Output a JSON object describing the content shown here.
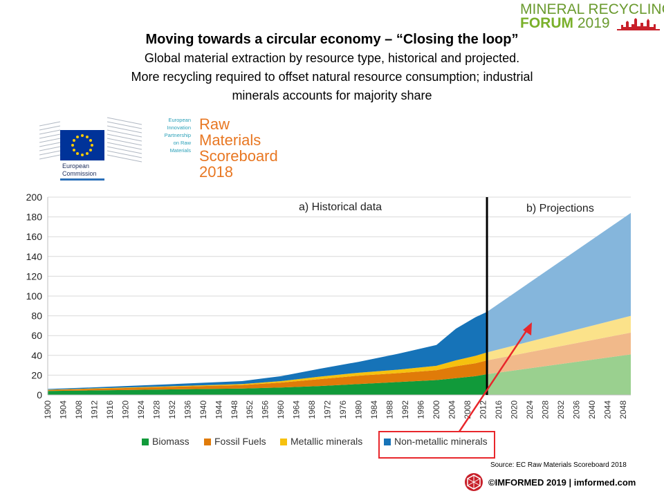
{
  "header": {
    "title": "Moving towards a circular economy – “Closing the loop”",
    "subtitle_lines": [
      "Global material extraction by resource type, historical and projected.",
      "More recycling required to offset natural resource consumption;  industrial",
      "minerals accounts for majority share"
    ]
  },
  "logos": {
    "mrf_line1": "MINERAL RECYCLING",
    "mrf_forum": "FORUM",
    "mrf_year": "2019",
    "ec_line1": "European",
    "ec_line2": "Commission",
    "eip_text": [
      "European",
      "Innovation",
      "Partnership",
      "on Raw",
      "Materials"
    ],
    "rms_text": [
      "Raw",
      "Materials",
      "Scoreboard",
      "2018"
    ]
  },
  "colors": {
    "biomass": "#119a3a",
    "fossil": "#e07b09",
    "metallic": "#f6c10f",
    "nonmetallic": "#1673b8",
    "highlight": "#e8262b"
  },
  "chart_data": {
    "type": "area",
    "stacked": true,
    "ylim": [
      0,
      200
    ],
    "yticks": [
      0,
      20,
      40,
      60,
      80,
      100,
      120,
      140,
      160,
      180,
      200
    ],
    "xlim": [
      1900,
      2050
    ],
    "xtick_labels": [
      "1900",
      "1904",
      "1908",
      "1912",
      "1916",
      "1920",
      "1924",
      "1928",
      "1932",
      "1936",
      "1940",
      "1944",
      "1948",
      "1952",
      "1956",
      "1960",
      "1964",
      "1968",
      "1972",
      "1976",
      "1980",
      "1984",
      "1988",
      "1992",
      "1996",
      "2000",
      "2004",
      "2008",
      "2012",
      "2016",
      "2020",
      "2024",
      "2028",
      "2032",
      "2036",
      "2040",
      "2044",
      "2048"
    ],
    "divider_year": 2013,
    "annotations": [
      "a) Historical data",
      "b) Projections"
    ],
    "series": [
      {
        "name": "Biomass",
        "historical": {
          "x": [
            1900,
            1910,
            1920,
            1930,
            1940,
            1950,
            1960,
            1970,
            1980,
            1990,
            2000,
            2005,
            2010,
            2013
          ],
          "y": [
            4,
            4.5,
            5,
            5.5,
            6,
            6.5,
            7.5,
            9,
            11,
            13,
            15,
            17,
            19,
            21
          ]
        },
        "projected": {
          "x": [
            2013,
            2050
          ],
          "y": [
            21,
            41
          ]
        }
      },
      {
        "name": "Fossil Fuels",
        "historical": {
          "x": [
            1900,
            1910,
            1920,
            1930,
            1940,
            1950,
            1960,
            1970,
            1980,
            1990,
            2000,
            2005,
            2010,
            2013
          ],
          "y": [
            1,
            1.5,
            2,
            2.5,
            3,
            3.5,
            5,
            7,
            8.5,
            9,
            10,
            12,
            13,
            14
          ]
        },
        "projected": {
          "x": [
            2013,
            2050
          ],
          "y": [
            14,
            22
          ]
        }
      },
      {
        "name": "Metallic minerals",
        "historical": {
          "x": [
            1900,
            1910,
            1920,
            1930,
            1940,
            1950,
            1960,
            1970,
            1980,
            1990,
            2000,
            2005,
            2010,
            2013
          ],
          "y": [
            0.3,
            0.4,
            0.5,
            0.6,
            0.8,
            1,
            1.5,
            2.5,
            3,
            3.5,
            4.5,
            6,
            7.5,
            8
          ]
        },
        "projected": {
          "x": [
            2013,
            2050
          ],
          "y": [
            8,
            17
          ]
        }
      },
      {
        "name": "Non-metallic minerals",
        "historical": {
          "x": [
            1900,
            1910,
            1920,
            1930,
            1940,
            1950,
            1960,
            1970,
            1980,
            1990,
            2000,
            2005,
            2010,
            2013
          ],
          "y": [
            0.7,
            1,
            1.5,
            2,
            2.5,
            3,
            5,
            8,
            11,
            16,
            21,
            32,
            39,
            41
          ]
        },
        "projected": {
          "x": [
            2013,
            2050
          ],
          "y": [
            41,
            104
          ]
        }
      }
    ]
  },
  "legend": {
    "items": [
      "Biomass",
      "Fossil Fuels",
      "Metallic minerals",
      "Non-metallic minerals"
    ]
  },
  "source": "Source: EC  Raw Materials Scoreboard  2018",
  "footer": "©IMFORMED 2019  | imformed.com"
}
